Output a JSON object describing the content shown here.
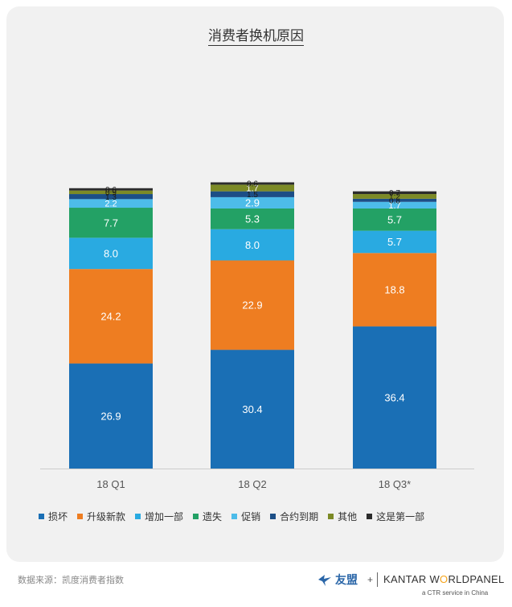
{
  "title": "消费者换机原因",
  "source_note": "数据来源：凯度消费者指数",
  "logos": {
    "youmeng": "友盟",
    "plus": "+",
    "kantar_part1": "KANTAR W",
    "kantar_accent": "O",
    "kantar_part2": "RLDPANEL",
    "kantar_sub": "a CTR service in China"
  },
  "colors": {
    "损坏": "#1a6fb5",
    "升级新款": "#ee7d21",
    "增加一部": "#29aae1",
    "遗失": "#23a165",
    "促销": "#4dbce9",
    "合约到期": "#1c4e86",
    "其他": "#7c8a26",
    "这是第一部": "#2c2c2c"
  },
  "icons": {
    "youmeng_logo": "bird-icon"
  },
  "chart_data": {
    "type": "bar",
    "stacked": true,
    "title": "消费者换机原因",
    "categories": [
      "18 Q1",
      "18 Q2",
      "18 Q3*"
    ],
    "ylim": [
      0,
      100
    ],
    "grid": false,
    "legend_position": "bottom",
    "series": [
      {
        "name": "损坏",
        "values": [
          26.9,
          30.4,
          36.4
        ]
      },
      {
        "name": "升级新款",
        "values": [
          24.2,
          22.9,
          18.8
        ]
      },
      {
        "name": "增加一部",
        "values": [
          8.0,
          8.0,
          5.7
        ]
      },
      {
        "name": "遗失",
        "values": [
          7.7,
          5.3,
          5.7
        ]
      },
      {
        "name": "促销",
        "values": [
          2.2,
          2.9,
          1.7
        ]
      },
      {
        "name": "合约到期",
        "values": [
          1.3,
          1.5,
          0.8
        ]
      },
      {
        "name": "其他",
        "values": [
          0.9,
          1.7,
          1.2
        ]
      },
      {
        "name": "这是第一部",
        "values": [
          0.6,
          0.6,
          0.7
        ]
      }
    ]
  }
}
